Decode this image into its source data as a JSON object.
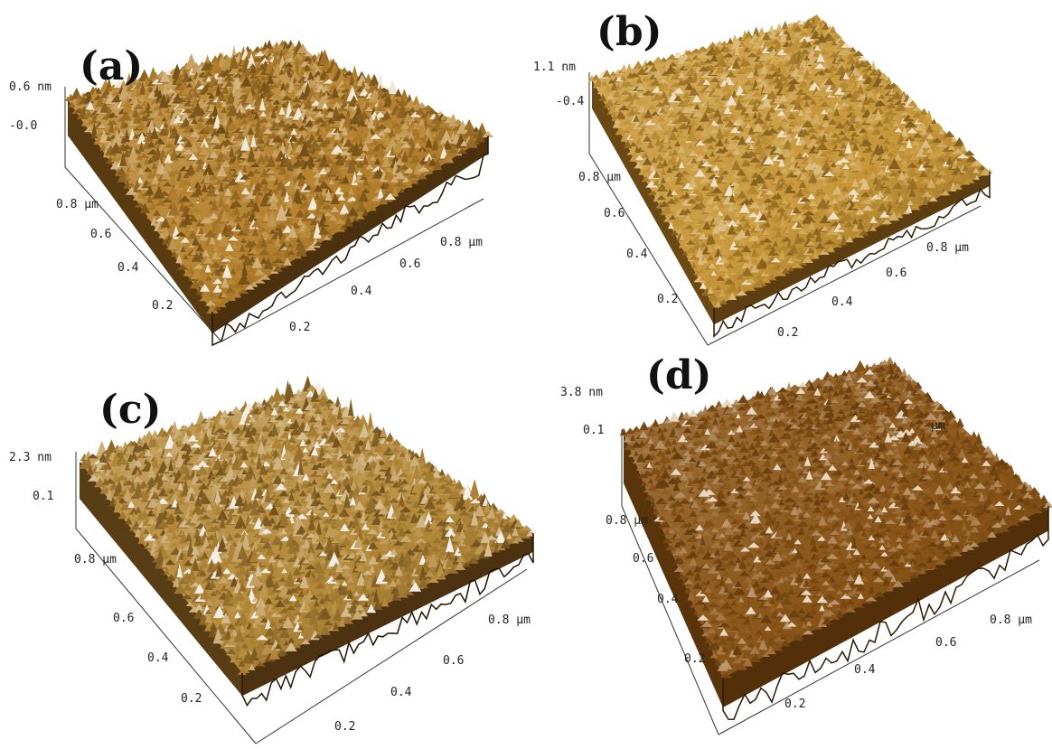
{
  "panels": [
    {
      "id": "a",
      "label": "(a)",
      "z_scale": {
        "top": "0.6 nm",
        "bottom": "-0.0"
      },
      "y_ticks": [
        "0.8 µm",
        "0.6",
        "0.4",
        "0.2"
      ],
      "x_ticks": [
        "0.2",
        "0.4",
        "0.6",
        "0.8 µm"
      ],
      "colors": {
        "low": "#3a2308",
        "mid": "#b5822e",
        "high": "#f2e8d6"
      },
      "roughness": 0.55
    },
    {
      "id": "b",
      "label": "(b)",
      "z_scale": {
        "top": "1.1 nm",
        "bottom": "-0.4"
      },
      "y_ticks": [
        "0.8 µm",
        "0.6",
        "0.4",
        "0.2"
      ],
      "x_ticks": [
        "0.2",
        "0.4",
        "0.6",
        "0.8 µm"
      ],
      "colors": {
        "low": "#4a2e08",
        "mid": "#c8983a",
        "high": "#efe2c8"
      },
      "roughness": 0.35
    },
    {
      "id": "c",
      "label": "(c)",
      "z_scale": {
        "top": "2.3 nm",
        "bottom": "0.1"
      },
      "y_ticks": [
        "0.8 µm",
        "0.6",
        "0.4",
        "0.2"
      ],
      "x_ticks": [
        "0.2",
        "0.4",
        "0.6",
        "0.8 µm"
      ],
      "colors": {
        "low": "#3a2308",
        "mid": "#b58a3a",
        "high": "#f4efe6"
      },
      "roughness": 0.6
    },
    {
      "id": "d",
      "label": "(d)",
      "z_scale": {
        "top": "3.8 nm",
        "bottom": "0.1"
      },
      "y_ticks": [
        "0.8 µm",
        "0.6",
        "0.4",
        "0.2"
      ],
      "x_ticks": [
        "0.2",
        "0.4",
        "0.6",
        "0.8 µm"
      ],
      "extra_back_tick": "µm",
      "colors": {
        "low": "#4a2a08",
        "mid": "#8a5518",
        "high": "#e8d8c2"
      },
      "roughness": 0.3
    }
  ]
}
